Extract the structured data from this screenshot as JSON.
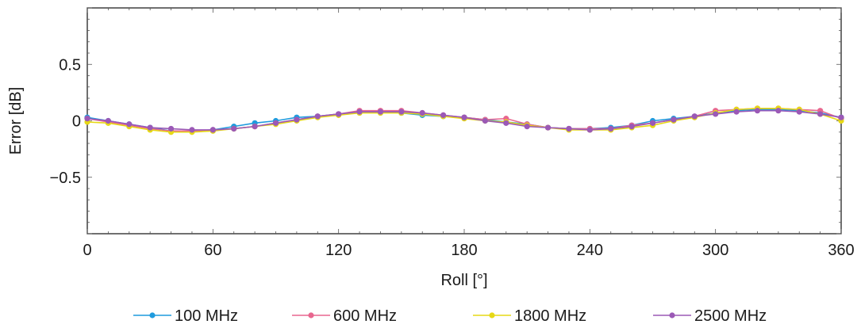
{
  "chart_data": {
    "type": "line",
    "title": "",
    "xlabel": "Roll [°]",
    "ylabel": "Error [dB]",
    "xlim": [
      0,
      360
    ],
    "ylim": [
      -1,
      1
    ],
    "xticks": [
      0,
      60,
      120,
      180,
      240,
      300,
      360
    ],
    "xtick_labels": [
      "0",
      "60",
      "120",
      "180",
      "240",
      "300",
      "360"
    ],
    "yticks": [
      -0.5,
      0,
      0.5
    ],
    "ytick_labels": [
      "−0.5",
      "0",
      "0.5"
    ],
    "grid": false,
    "legend_position": "bottom",
    "x": [
      0,
      10,
      20,
      30,
      40,
      50,
      60,
      70,
      80,
      90,
      100,
      110,
      120,
      130,
      140,
      150,
      160,
      170,
      180,
      190,
      200,
      210,
      220,
      230,
      240,
      250,
      260,
      270,
      280,
      290,
      300,
      310,
      320,
      330,
      340,
      350,
      360
    ],
    "series": [
      {
        "name": "100 MHz",
        "color": "#1f9bde",
        "values": [
          0.03,
          0.0,
          -0.03,
          -0.06,
          -0.09,
          -0.09,
          -0.08,
          -0.05,
          -0.02,
          0.0,
          0.03,
          0.04,
          0.06,
          0.08,
          0.08,
          0.07,
          0.05,
          0.04,
          0.03,
          0.01,
          -0.01,
          -0.03,
          -0.06,
          -0.07,
          -0.07,
          -0.06,
          -0.04,
          0.0,
          0.02,
          0.04,
          0.07,
          0.09,
          0.1,
          0.1,
          0.09,
          0.07,
          0.03
        ]
      },
      {
        "name": "600 MHz",
        "color": "#e8678f",
        "values": [
          0.02,
          -0.01,
          -0.04,
          -0.07,
          -0.09,
          -0.09,
          -0.08,
          -0.07,
          -0.05,
          -0.02,
          0.01,
          0.04,
          0.06,
          0.09,
          0.09,
          0.09,
          0.07,
          0.05,
          0.03,
          0.01,
          0.02,
          -0.03,
          -0.06,
          -0.07,
          -0.07,
          -0.07,
          -0.04,
          -0.02,
          0.01,
          0.04,
          0.09,
          0.1,
          0.11,
          0.11,
          0.1,
          0.09,
          0.02
        ]
      },
      {
        "name": "1800 MHz",
        "color": "#e6d816",
        "values": [
          -0.01,
          -0.02,
          -0.05,
          -0.08,
          -0.1,
          -0.1,
          -0.09,
          -0.07,
          -0.05,
          -0.03,
          0.0,
          0.03,
          0.05,
          0.07,
          0.07,
          0.07,
          0.06,
          0.04,
          0.02,
          0.0,
          -0.01,
          -0.04,
          -0.06,
          -0.08,
          -0.08,
          -0.08,
          -0.06,
          -0.04,
          0.0,
          0.03,
          0.07,
          0.1,
          0.11,
          0.11,
          0.1,
          0.06,
          0.0
        ]
      },
      {
        "name": "2500 MHz",
        "color": "#9b59b6",
        "values": [
          0.02,
          0.0,
          -0.03,
          -0.06,
          -0.07,
          -0.08,
          -0.08,
          -0.07,
          -0.05,
          -0.02,
          0.01,
          0.04,
          0.06,
          0.08,
          0.08,
          0.08,
          0.07,
          0.05,
          0.03,
          0.0,
          -0.02,
          -0.05,
          -0.06,
          -0.07,
          -0.08,
          -0.07,
          -0.05,
          -0.02,
          0.01,
          0.04,
          0.06,
          0.08,
          0.09,
          0.09,
          0.08,
          0.06,
          0.03
        ]
      }
    ]
  }
}
